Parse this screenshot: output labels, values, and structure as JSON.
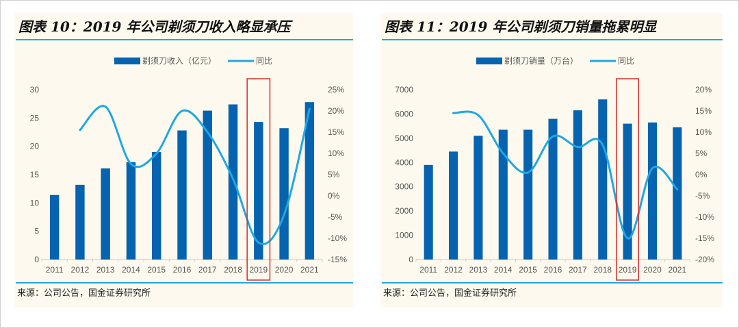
{
  "chart_data": [
    {
      "type": "bar",
      "title": "图表 10：2019 年公司剃须刀收入略显承压",
      "source": "来源：公司公告，国金证券研究所",
      "categories": [
        "2011",
        "2012",
        "2013",
        "2014",
        "2015",
        "2016",
        "2017",
        "2018",
        "2019",
        "2020",
        "2021"
      ],
      "series": [
        {
          "name": "剃须刀收入（亿元）",
          "type": "bar",
          "axis": "left",
          "color": "#0563b0",
          "values": [
            11.4,
            13.2,
            16.1,
            17.2,
            19.0,
            22.8,
            26.3,
            27.4,
            24.3,
            23.2,
            27.8
          ]
        },
        {
          "name": "同比",
          "type": "line",
          "axis": "right",
          "color": "#1ea7e4",
          "values": [
            null,
            15.5,
            21.0,
            7.5,
            10.0,
            20.0,
            15.0,
            4.0,
            -11.0,
            -4.5,
            20.5
          ]
        }
      ],
      "ylim": [
        0,
        30
      ],
      "yticks": [
        "0",
        "5",
        "10",
        "15",
        "20",
        "25",
        "30"
      ],
      "y2lim": [
        -15,
        25
      ],
      "y2ticks": [
        "-15%",
        "-10%",
        "-5%",
        "0%",
        "5%",
        "10%",
        "15%",
        "20%",
        "25%"
      ],
      "highlight": "2019",
      "legend_position": "top-center",
      "xlabel": "",
      "ylabel": ""
    },
    {
      "type": "bar",
      "title": "图表 11：2019 年公司剃须刀销量拖累明显",
      "source": "来源：公司公告，国金证券研究所",
      "categories": [
        "2011",
        "2012",
        "2013",
        "2014",
        "2015",
        "2016",
        "2017",
        "2018",
        "2019",
        "2020",
        "2021"
      ],
      "series": [
        {
          "name": "剃须刀销量（万台）",
          "type": "bar",
          "axis": "left",
          "color": "#0563b0",
          "values": [
            3900,
            4450,
            5100,
            5350,
            5350,
            5800,
            6150,
            6600,
            5600,
            5650,
            5450
          ]
        },
        {
          "name": "同比",
          "type": "line",
          "axis": "right",
          "color": "#1ea7e4",
          "values": [
            null,
            14.5,
            14.0,
            5.0,
            0.5,
            9.0,
            6.5,
            7.0,
            -15.0,
            1.5,
            -3.5
          ]
        }
      ],
      "ylim": [
        0,
        7000
      ],
      "yticks": [
        "0",
        "1000",
        "2000",
        "3000",
        "4000",
        "5000",
        "6000",
        "7000"
      ],
      "y2lim": [
        -20,
        20
      ],
      "y2ticks": [
        "-20%",
        "-15%",
        "-10%",
        "-5%",
        "0%",
        "5%",
        "10%",
        "15%",
        "20%"
      ],
      "highlight": "2019",
      "legend_position": "top-center",
      "xlabel": "",
      "ylabel": ""
    }
  ]
}
